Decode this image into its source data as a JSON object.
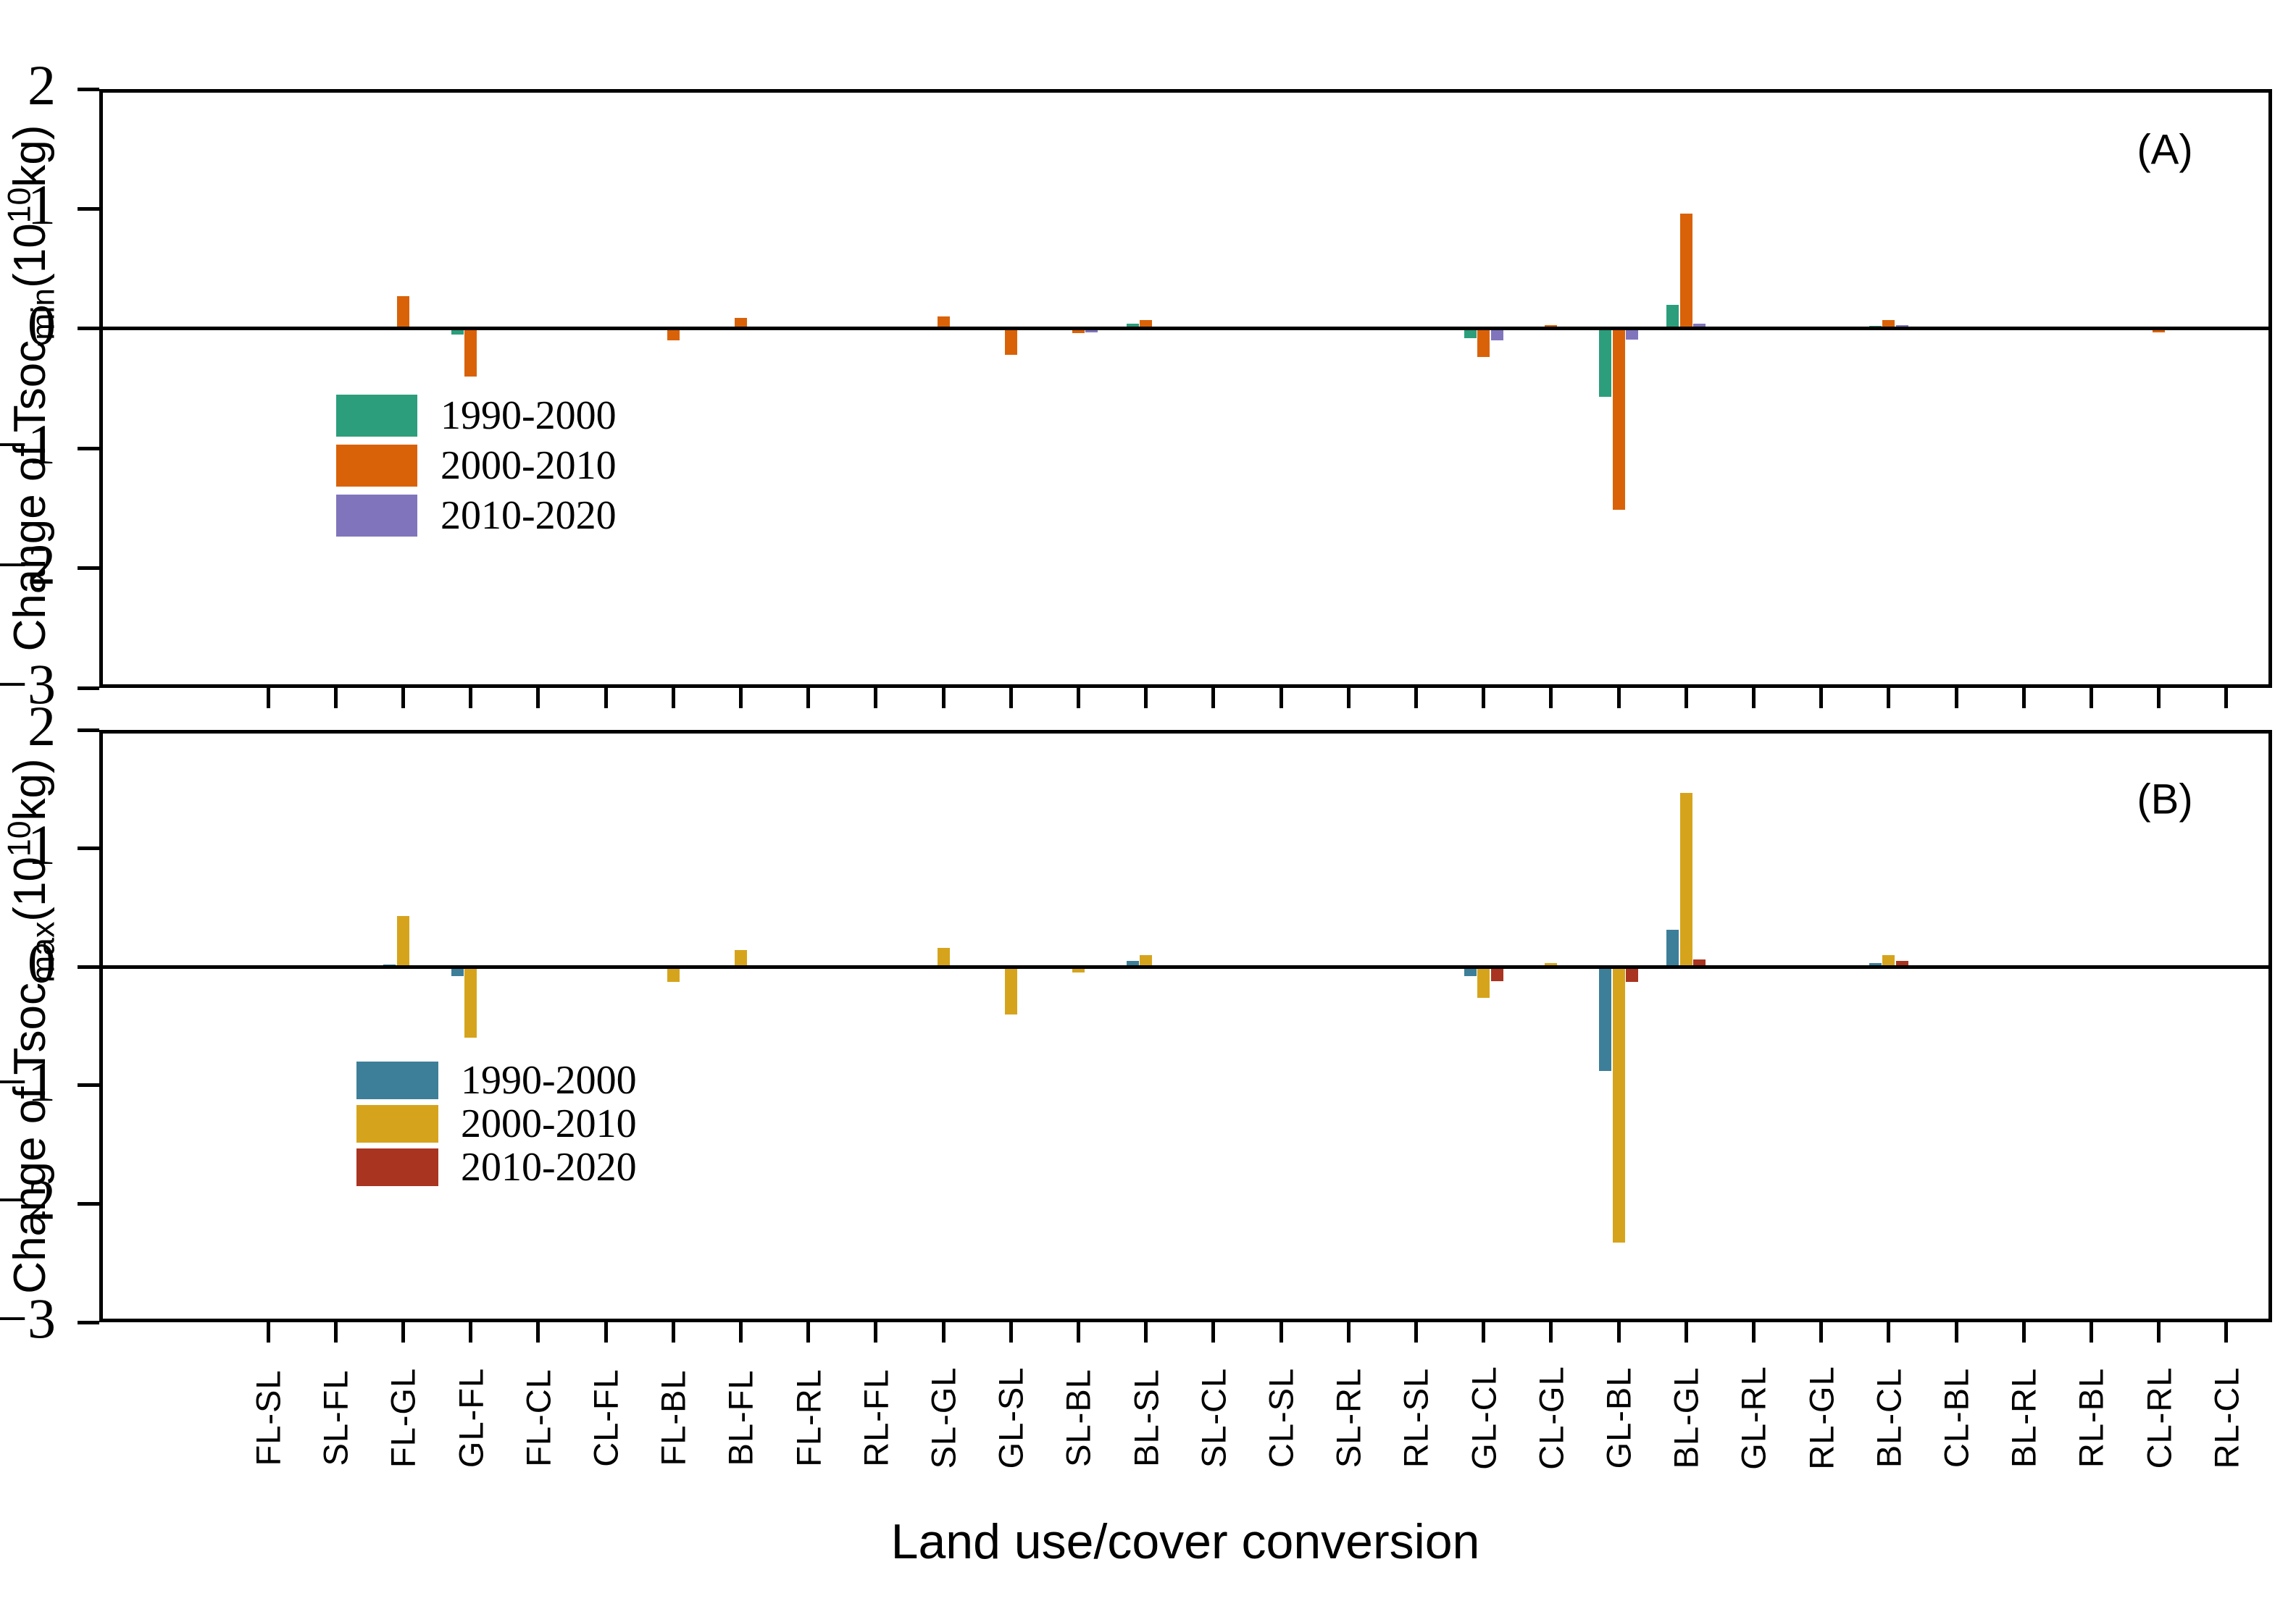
{
  "chart_data": [
    {
      "type": "bar",
      "panel_annotation": "(A)",
      "ylabel": "Change of Tsoc_min (10^10 kg)",
      "ylabel_parts": {
        "prefix": "Change of Tsoc",
        "sub": "min",
        "open": "(10",
        "sup": "10",
        "close": "kg)"
      },
      "xlabel": "Land use/cover conversion",
      "ylim": [
        -3,
        2
      ],
      "yticks": [
        2,
        1,
        0,
        -1,
        -2,
        -3
      ],
      "ytick_labels": [
        "2",
        "1",
        "0",
        "−1",
        "−2",
        "−3"
      ],
      "grid": false,
      "legend_position": "inside-lower-left",
      "categories": [
        "FL-SL",
        "SL-FL",
        "FL-GL",
        "GL-FL",
        "FL-CL",
        "CL-FL",
        "FL-BL",
        "BL-FL",
        "FL-RL",
        "RL-FL",
        "SL-GL",
        "GL-SL",
        "SL-BL",
        "BL-SL",
        "SL-CL",
        "CL-SL",
        "SL-RL",
        "RL-SL",
        "GL-CL",
        "CL-GL",
        "GL-BL",
        "BL-GL",
        "GL-RL",
        "RL-GL",
        "BL-CL",
        "CL-BL",
        "BL-RL",
        "RL-BL",
        "CL-RL",
        "RL-CL"
      ],
      "series": [
        {
          "name": "1990-2000",
          "color": "#2C9E7C",
          "values": [
            0,
            0,
            0,
            -0.05,
            0,
            0,
            0,
            0,
            0,
            0,
            0,
            0,
            0,
            0.04,
            0,
            0,
            0,
            0,
            -0.08,
            0,
            -0.57,
            0.2,
            0,
            0,
            0.02,
            0,
            0,
            0,
            0,
            0
          ]
        },
        {
          "name": "2000-2010",
          "color": "#D96208",
          "values": [
            0,
            0,
            0.27,
            -0.4,
            0,
            0,
            -0.1,
            0.09,
            0,
            0,
            0.1,
            -0.22,
            -0.04,
            0.07,
            0,
            0,
            0,
            0,
            -0.24,
            0.03,
            -1.51,
            0.96,
            0,
            0,
            0.07,
            0,
            0,
            0,
            -0.03,
            0
          ]
        },
        {
          "name": "2010-2020",
          "color": "#8075BC",
          "values": [
            0,
            0,
            0,
            0,
            0,
            0,
            0,
            0,
            0,
            0,
            0,
            0,
            -0.03,
            0,
            0,
            0,
            0,
            0,
            -0.1,
            0,
            -0.09,
            0.04,
            0,
            0,
            0.03,
            0,
            0,
            0,
            0,
            0
          ]
        }
      ]
    },
    {
      "type": "bar",
      "panel_annotation": "(B)",
      "ylabel": "Change of Tsoc_max (10^10 kg)",
      "ylabel_parts": {
        "prefix": "Change of Tsoc",
        "sub": "max",
        "open": "(10",
        "sup": "10",
        "close": "kg)"
      },
      "xlabel": "Land use/cover conversion",
      "ylim": [
        -3,
        2
      ],
      "yticks": [
        2,
        1,
        0,
        -1,
        -2,
        -3
      ],
      "ytick_labels": [
        "2",
        "1",
        "0",
        "−1",
        "−2",
        "−3"
      ],
      "grid": false,
      "legend_position": "inside-lower-left",
      "categories": [
        "FL-SL",
        "SL-FL",
        "FL-GL",
        "GL-FL",
        "FL-CL",
        "CL-FL",
        "FL-BL",
        "BL-FL",
        "FL-RL",
        "RL-FL",
        "SL-GL",
        "GL-SL",
        "SL-BL",
        "BL-SL",
        "SL-CL",
        "CL-SL",
        "SL-RL",
        "RL-SL",
        "GL-CL",
        "CL-GL",
        "GL-BL",
        "BL-GL",
        "GL-RL",
        "RL-GL",
        "BL-CL",
        "CL-BL",
        "BL-RL",
        "RL-BL",
        "CL-RL",
        "RL-CL"
      ],
      "series": [
        {
          "name": "1990-2000",
          "color": "#3D7F99",
          "values": [
            0,
            0,
            0.02,
            -0.08,
            0,
            0,
            0,
            0,
            0,
            0,
            0,
            -0.02,
            0,
            0.05,
            0,
            0,
            0,
            0,
            -0.08,
            0,
            -0.88,
            0.31,
            0,
            0,
            0.03,
            0,
            0,
            0,
            0,
            0
          ]
        },
        {
          "name": "2000-2010",
          "color": "#D6A41C",
          "values": [
            0,
            0,
            0.43,
            -0.6,
            0,
            0,
            -0.13,
            0.14,
            0,
            0,
            0.16,
            -0.4,
            -0.05,
            0.1,
            0,
            0,
            0,
            0,
            -0.26,
            0.03,
            -2.33,
            1.47,
            0,
            0,
            0.1,
            0,
            0,
            0,
            0,
            0
          ]
        },
        {
          "name": "2010-2020",
          "color": "#A93420",
          "values": [
            0,
            0,
            0,
            0,
            0,
            0,
            0,
            0,
            0,
            0,
            0,
            0,
            0,
            0,
            0,
            0,
            0,
            0,
            -0.12,
            -0.02,
            -0.13,
            0.06,
            0,
            0,
            0.05,
            0,
            0,
            0,
            0,
            0
          ]
        }
      ]
    }
  ]
}
